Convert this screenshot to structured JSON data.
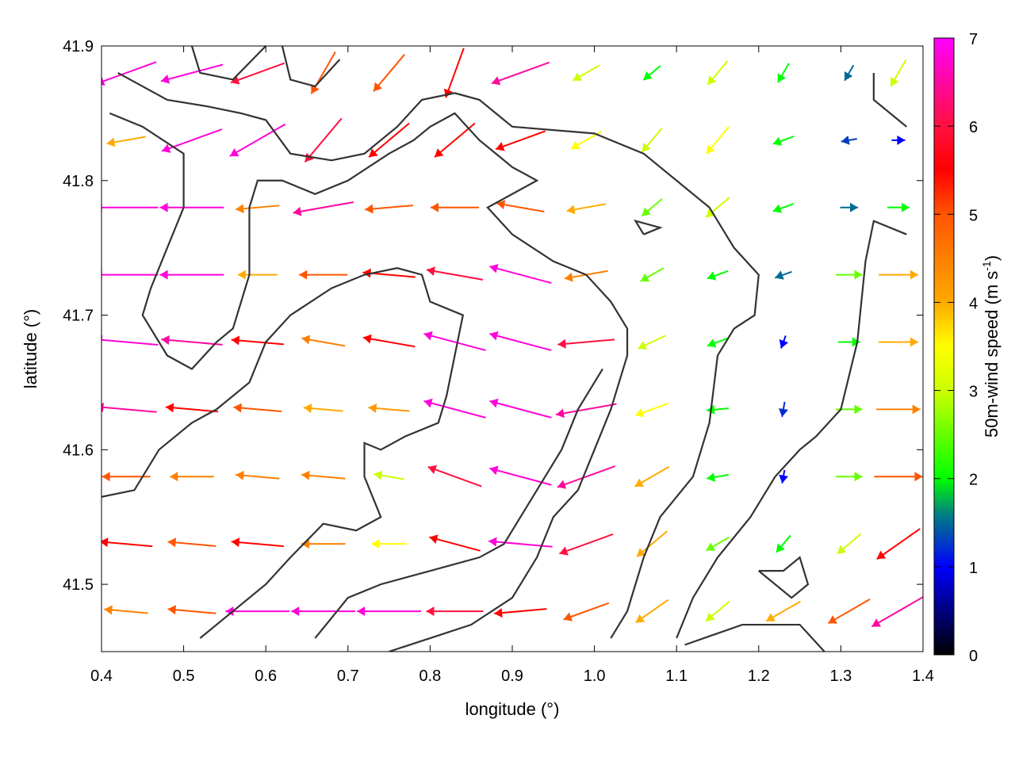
{
  "chart_data": {
    "type": "vector-field",
    "xlabel": "longitude (°)",
    "ylabel": "latitude (°)",
    "colorbar_label": "50m-wind speed (m s",
    "colorbar_label_sup": "-1",
    "colorbar_label_end": ")",
    "xlim": [
      0.4,
      1.4
    ],
    "ylim": [
      41.45,
      41.9
    ],
    "clim": [
      0,
      7
    ],
    "xticks": [
      "0.4",
      "0.5",
      "0.6",
      "0.7",
      "0.8",
      "0.9",
      "1.0",
      "1.1",
      "1.2",
      "1.3",
      "1.4"
    ],
    "yticks": [
      "41.5",
      "41.6",
      "41.7",
      "41.8",
      "41.9"
    ],
    "cticks": [
      "0",
      "1",
      "2",
      "3",
      "4",
      "5",
      "6",
      "7"
    ],
    "colormap": [
      [
        0,
        "#000000"
      ],
      [
        1,
        "#0000ff"
      ],
      [
        1.6,
        "#008080"
      ],
      [
        2,
        "#00ff00"
      ],
      [
        3,
        "#ccff00"
      ],
      [
        3.5,
        "#ffff00"
      ],
      [
        4,
        "#ffaa00"
      ],
      [
        5,
        "#ff5500"
      ],
      [
        5.5,
        "#ff0000"
      ],
      [
        6,
        "#ff1040"
      ],
      [
        7,
        "#ff00ff"
      ]
    ],
    "grid_lon": [
      0.43,
      0.51,
      0.59,
      0.67,
      0.75,
      0.83,
      0.91,
      0.99,
      1.07,
      1.15,
      1.23,
      1.31,
      1.37
    ],
    "grid_lat": [
      41.88,
      41.83,
      41.78,
      41.73,
      41.68,
      41.63,
      41.58,
      41.53,
      41.48
    ],
    "speed": [
      [
        6.8,
        6.8,
        6,
        5,
        5,
        5.5,
        6.5,
        3,
        2,
        3,
        2,
        1.5,
        3
      ],
      [
        4,
        6.8,
        6.8,
        6,
        5.5,
        5.5,
        5.5,
        3.5,
        3,
        3.5,
        2,
        1.3,
        1
      ],
      [
        6.8,
        6.8,
        4.5,
        6.5,
        5,
        5,
        5,
        4,
        2.5,
        3,
        2,
        1.5,
        2
      ],
      [
        6.8,
        6.8,
        4,
        5,
        5.5,
        6,
        6.8,
        4.5,
        2.5,
        2,
        1.5,
        2.5,
        4
      ],
      [
        6.8,
        6.5,
        5.5,
        4.5,
        5.5,
        6.8,
        6.8,
        6,
        3,
        2,
        1,
        2,
        4
      ],
      [
        6.5,
        5.5,
        5,
        4,
        4.2,
        6.8,
        6.8,
        6.5,
        3.5,
        2,
        1.2,
        2.5,
        4.5
      ],
      [
        5,
        4.5,
        4.5,
        4.5,
        3,
        6,
        6.8,
        6.5,
        4,
        2,
        1,
        2.5,
        5
      ],
      [
        5.5,
        5,
        5.5,
        4.5,
        3.5,
        5.5,
        6.8,
        6,
        4,
        2.5,
        2,
        3,
        5.5
      ],
      [
        4.5,
        5,
        6.8,
        6.8,
        6.8,
        6,
        5.5,
        5,
        4,
        3,
        4,
        5,
        6.5
      ]
    ],
    "direction_deg": [
      [
        200,
        195,
        200,
        240,
        230,
        250,
        200,
        210,
        220,
        230,
        240,
        240,
        240
      ],
      [
        190,
        200,
        210,
        230,
        220,
        220,
        200,
        210,
        230,
        230,
        200,
        190,
        0
      ],
      [
        180,
        180,
        185,
        190,
        185,
        180,
        170,
        190,
        220,
        220,
        200,
        0,
        0
      ],
      [
        180,
        180,
        180,
        180,
        175,
        170,
        165,
        190,
        210,
        200,
        200,
        0,
        0
      ],
      [
        175,
        175,
        175,
        170,
        170,
        165,
        165,
        185,
        205,
        200,
        250,
        0,
        0
      ],
      [
        175,
        175,
        175,
        175,
        175,
        165,
        165,
        190,
        200,
        185,
        260,
        0,
        0
      ],
      [
        180,
        180,
        175,
        175,
        170,
        160,
        165,
        200,
        210,
        190,
        260,
        0,
        0
      ],
      [
        175,
        175,
        175,
        180,
        180,
        165,
        175,
        200,
        220,
        210,
        230,
        220,
        215
      ],
      [
        175,
        175,
        180,
        180,
        180,
        180,
        185,
        200,
        215,
        220,
        210,
        210,
        210
      ]
    ],
    "coastlines": [
      [
        [
          0.42,
          41.88
        ],
        [
          0.48,
          41.86
        ],
        [
          0.53,
          41.855
        ],
        [
          0.57,
          41.85
        ],
        [
          0.6,
          41.845
        ],
        [
          0.63,
          41.82
        ],
        [
          0.68,
          41.815
        ],
        [
          0.72,
          41.82
        ],
        [
          0.76,
          41.84
        ],
        [
          0.79,
          41.86
        ],
        [
          0.83,
          41.865
        ],
        [
          0.86,
          41.86
        ],
        [
          0.9,
          41.84
        ],
        [
          1.0,
          41.835
        ],
        [
          1.06,
          41.82
        ],
        [
          1.1,
          41.8
        ],
        [
          1.14,
          41.78
        ],
        [
          1.17,
          41.75
        ],
        [
          1.2,
          41.73
        ],
        [
          1.195,
          41.7
        ],
        [
          1.17,
          41.69
        ],
        [
          1.15,
          41.67
        ],
        [
          1.14,
          41.62
        ],
        [
          1.12,
          41.58
        ],
        [
          1.08,
          41.55
        ],
        [
          1.06,
          41.52
        ],
        [
          1.04,
          41.48
        ],
        [
          1.02,
          41.46
        ]
      ],
      [
        [
          0.41,
          41.85
        ],
        [
          0.45,
          41.84
        ],
        [
          0.5,
          41.82
        ],
        [
          0.5,
          41.78
        ],
        [
          0.48,
          41.75
        ],
        [
          0.46,
          41.72
        ],
        [
          0.45,
          41.7
        ],
        [
          0.48,
          41.67
        ],
        [
          0.51,
          41.66
        ],
        [
          0.54,
          41.68
        ],
        [
          0.56,
          41.69
        ],
        [
          0.58,
          41.73
        ],
        [
          0.58,
          41.78
        ],
        [
          0.59,
          41.8
        ],
        [
          0.62,
          41.8
        ],
        [
          0.66,
          41.79
        ],
        [
          0.7,
          41.8
        ],
        [
          0.75,
          41.82
        ],
        [
          0.78,
          41.83
        ],
        [
          0.8,
          41.84
        ],
        [
          0.83,
          41.85
        ],
        [
          0.86,
          41.83
        ],
        [
          0.9,
          41.81
        ],
        [
          0.93,
          41.8
        ],
        [
          0.9,
          41.79
        ],
        [
          0.87,
          41.78
        ],
        [
          0.9,
          41.76
        ],
        [
          0.95,
          41.74
        ],
        [
          0.99,
          41.73
        ],
        [
          1.02,
          41.71
        ],
        [
          1.04,
          41.69
        ],
        [
          1.04,
          41.67
        ],
        [
          1.02,
          41.63
        ],
        [
          1.0,
          41.6
        ],
        [
          0.98,
          41.57
        ],
        [
          0.95,
          41.55
        ],
        [
          0.93,
          41.52
        ],
        [
          0.9,
          41.49
        ],
        [
          0.85,
          41.47
        ],
        [
          0.8,
          41.46
        ],
        [
          0.75,
          41.45
        ]
      ],
      [
        [
          0.4,
          41.565
        ],
        [
          0.44,
          41.57
        ],
        [
          0.47,
          41.6
        ],
        [
          0.51,
          41.62
        ],
        [
          0.54,
          41.63
        ],
        [
          0.58,
          41.65
        ],
        [
          0.6,
          41.68
        ],
        [
          0.63,
          41.7
        ],
        [
          0.68,
          41.72
        ],
        [
          0.72,
          41.73
        ],
        [
          0.76,
          41.735
        ],
        [
          0.79,
          41.73
        ],
        [
          0.8,
          41.71
        ],
        [
          0.84,
          41.7
        ],
        [
          0.83,
          41.67
        ],
        [
          0.82,
          41.64
        ],
        [
          0.81,
          41.62
        ],
        [
          0.77,
          41.61
        ],
        [
          0.74,
          41.6
        ],
        [
          0.72,
          41.605
        ],
        [
          0.72,
          41.58
        ],
        [
          0.74,
          41.55
        ],
        [
          0.71,
          41.54
        ],
        [
          0.67,
          41.545
        ],
        [
          0.63,
          41.52
        ],
        [
          0.6,
          41.5
        ],
        [
          0.56,
          41.48
        ],
        [
          0.52,
          41.46
        ]
      ],
      [
        [
          0.66,
          41.46
        ],
        [
          0.7,
          41.49
        ],
        [
          0.74,
          41.5
        ],
        [
          0.8,
          41.51
        ],
        [
          0.86,
          41.52
        ],
        [
          0.89,
          41.53
        ],
        [
          0.93,
          41.57
        ],
        [
          0.96,
          41.6
        ],
        [
          0.98,
          41.63
        ],
        [
          1.01,
          41.66
        ]
      ],
      [
        [
          1.38,
          41.76
        ],
        [
          1.34,
          41.77
        ],
        [
          1.33,
          41.74
        ],
        [
          1.32,
          41.68
        ],
        [
          1.3,
          41.63
        ],
        [
          1.27,
          41.61
        ],
        [
          1.25,
          41.6
        ],
        [
          1.22,
          41.58
        ],
        [
          1.19,
          41.55
        ],
        [
          1.15,
          41.52
        ],
        [
          1.12,
          41.49
        ],
        [
          1.1,
          41.46
        ]
      ],
      [
        [
          1.11,
          41.455
        ],
        [
          1.18,
          41.47
        ],
        [
          1.25,
          41.47
        ],
        [
          1.28,
          41.45
        ]
      ],
      [
        [
          1.2,
          41.51
        ],
        [
          1.23,
          41.51
        ],
        [
          1.25,
          41.52
        ],
        [
          1.26,
          41.5
        ],
        [
          1.24,
          41.49
        ],
        [
          1.2,
          41.51
        ]
      ],
      [
        [
          1.34,
          41.88
        ],
        [
          1.34,
          41.86
        ],
        [
          1.38,
          41.84
        ]
      ],
      [
        [
          0.62,
          41.9
        ],
        [
          0.63,
          41.875
        ],
        [
          0.66,
          41.87
        ],
        [
          0.69,
          41.89
        ]
      ],
      [
        [
          0.51,
          41.9
        ],
        [
          0.52,
          41.88
        ],
        [
          0.56,
          41.875
        ],
        [
          0.6,
          41.9
        ]
      ],
      [
        [
          1.06,
          41.76
        ],
        [
          1.08,
          41.765
        ],
        [
          1.05,
          41.77
        ],
        [
          1.06,
          41.76
        ]
      ]
    ]
  }
}
